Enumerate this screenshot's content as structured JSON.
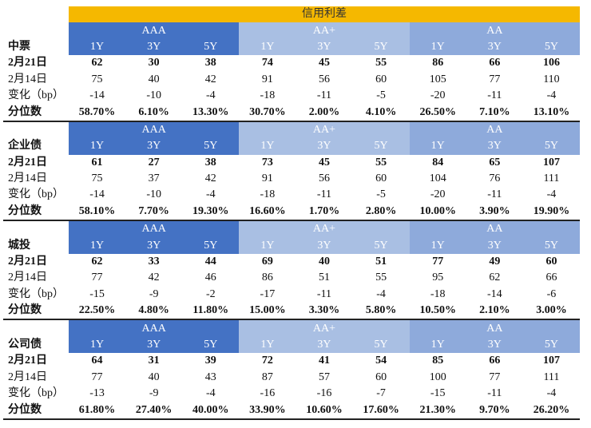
{
  "title": "信用利差",
  "tenors": [
    "1Y",
    "3Y",
    "5Y"
  ],
  "ratings": [
    "AAA",
    "AA+",
    "AA"
  ],
  "colors": {
    "title_bg": "#f5b800",
    "AAA_bg": "#4472c4",
    "AAplus_bg": "#a9bfe3",
    "AA_bg": "#8eaadb",
    "text_header": "#ffffff",
    "text": "#111111"
  },
  "sections": [
    {
      "name": "中票",
      "rows": [
        {
          "label": "2月21日",
          "values": [
            "62",
            "30",
            "38",
            "74",
            "45",
            "55",
            "86",
            "66",
            "106"
          ]
        },
        {
          "label": "2月14日",
          "values": [
            "75",
            "40",
            "42",
            "91",
            "56",
            "60",
            "105",
            "77",
            "110"
          ]
        },
        {
          "label": "变化（bp）",
          "values": [
            "-14",
            "-10",
            "-4",
            "-18",
            "-11",
            "-5",
            "-20",
            "-11",
            "-4"
          ]
        },
        {
          "label": "分位数",
          "values": [
            "58.70%",
            "6.10%",
            "13.30%",
            "30.70%",
            "2.00%",
            "4.10%",
            "26.50%",
            "7.10%",
            "13.10%"
          ]
        }
      ]
    },
    {
      "name": "企业债",
      "rows": [
        {
          "label": "2月21日",
          "values": [
            "61",
            "27",
            "38",
            "73",
            "45",
            "55",
            "84",
            "65",
            "107"
          ]
        },
        {
          "label": "2月14日",
          "values": [
            "75",
            "37",
            "42",
            "91",
            "56",
            "60",
            "104",
            "76",
            "111"
          ]
        },
        {
          "label": "变化（bp）",
          "values": [
            "-14",
            "-10",
            "-4",
            "-18",
            "-11",
            "-5",
            "-20",
            "-11",
            "-4"
          ]
        },
        {
          "label": "分位数",
          "values": [
            "58.10%",
            "7.70%",
            "19.30%",
            "16.60%",
            "1.70%",
            "2.80%",
            "10.00%",
            "3.90%",
            "19.90%"
          ]
        }
      ]
    },
    {
      "name": "城投",
      "rows": [
        {
          "label": "2月21日",
          "values": [
            "62",
            "33",
            "44",
            "69",
            "40",
            "51",
            "77",
            "49",
            "60"
          ]
        },
        {
          "label": "2月14日",
          "values": [
            "77",
            "42",
            "46",
            "86",
            "51",
            "55",
            "95",
            "62",
            "66"
          ]
        },
        {
          "label": "变化（bp）",
          "values": [
            "-15",
            "-9",
            "-2",
            "-17",
            "-11",
            "-4",
            "-18",
            "-14",
            "-6"
          ]
        },
        {
          "label": "分位数",
          "values": [
            "22.50%",
            "4.80%",
            "11.80%",
            "15.00%",
            "3.30%",
            "5.80%",
            "10.50%",
            "2.10%",
            "3.00%"
          ]
        }
      ]
    },
    {
      "name": "公司债",
      "rows": [
        {
          "label": "2月21日",
          "values": [
            "64",
            "31",
            "39",
            "72",
            "41",
            "54",
            "85",
            "66",
            "107"
          ]
        },
        {
          "label": "2月14日",
          "values": [
            "77",
            "40",
            "43",
            "87",
            "57",
            "60",
            "100",
            "77",
            "111"
          ]
        },
        {
          "label": "变化（bp）",
          "values": [
            "-13",
            "-9",
            "-4",
            "-16",
            "-16",
            "-7",
            "-15",
            "-11",
            "-4"
          ]
        },
        {
          "label": "分位数",
          "values": [
            "61.80%",
            "27.40%",
            "40.00%",
            "33.90%",
            "10.60%",
            "17.60%",
            "21.30%",
            "9.70%",
            "26.20%"
          ]
        }
      ]
    }
  ]
}
